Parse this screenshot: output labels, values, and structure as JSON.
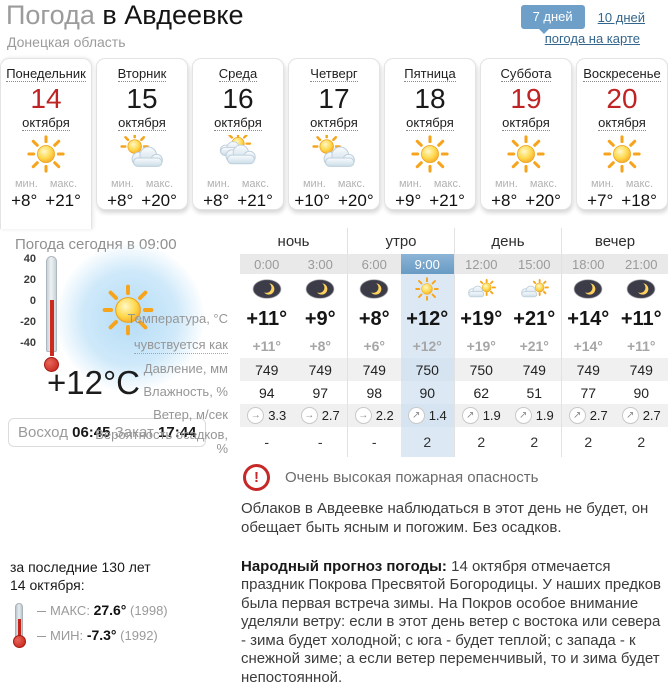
{
  "header": {
    "title_gray": "Погода",
    "title_black": "в Авдеевке",
    "subtitle": "Донецкая область",
    "btn_7days": "7 дней",
    "link_10days": "10 дней",
    "link_map": "погода на карте"
  },
  "colors": {
    "accent_blue": "#6d9fc9",
    "link_blue": "#34658c",
    "red_date": "#bf2323",
    "selected_column": "#dce9f5",
    "alert_red": "#c62828"
  },
  "labels": {
    "min": "мин.",
    "max": "макс."
  },
  "days": [
    {
      "name": "Понедельник",
      "date": "14",
      "month": "октября",
      "date_red": true,
      "icon": "sun",
      "min": "+8°",
      "max": "+21°",
      "selected": true
    },
    {
      "name": "Вторник",
      "date": "15",
      "month": "октября",
      "date_red": false,
      "icon": "sun-cloud",
      "min": "+8°",
      "max": "+20°",
      "selected": false
    },
    {
      "name": "Среда",
      "date": "16",
      "month": "октября",
      "date_red": false,
      "icon": "sun-clouds",
      "min": "+8°",
      "max": "+21°",
      "selected": false
    },
    {
      "name": "Четверг",
      "date": "17",
      "month": "октября",
      "date_red": false,
      "icon": "sun-cloud",
      "min": "+10°",
      "max": "+20°",
      "selected": false
    },
    {
      "name": "Пятница",
      "date": "18",
      "month": "октября",
      "date_red": false,
      "icon": "sun",
      "min": "+9°",
      "max": "+21°",
      "selected": false
    },
    {
      "name": "Суббота",
      "date": "19",
      "month": "октября",
      "date_red": true,
      "icon": "sun",
      "min": "+8°",
      "max": "+20°",
      "selected": false
    },
    {
      "name": "Воскресенье",
      "date": "20",
      "month": "октября",
      "date_red": true,
      "icon": "sun",
      "min": "+7°",
      "max": "+18°",
      "selected": false
    }
  ],
  "today": {
    "title": "Погода сегодня в 09:00",
    "big_temp": "+12°C",
    "thermo_scale": [
      "40",
      "20",
      "0",
      "-20",
      "-40"
    ],
    "sunrise_label": "Восход",
    "sunrise_time": "06:45",
    "sunset_label": "Закат",
    "sunset_time": "17:44"
  },
  "hourly": {
    "periods": [
      "ночь",
      "утро",
      "день",
      "вечер"
    ],
    "times": [
      "0:00",
      "3:00",
      "6:00",
      "9:00",
      "12:00",
      "15:00",
      "18:00",
      "21:00"
    ],
    "selected_time_index": 3,
    "icons": [
      "moon",
      "moon",
      "moon",
      "sun",
      "cloud-sun",
      "cloud-sun",
      "moon",
      "moon"
    ],
    "rows": [
      {
        "key": "temp",
        "label": "Температура, °C",
        "values": [
          "+11°",
          "+9°",
          "+8°",
          "+12°",
          "+19°",
          "+21°",
          "+14°",
          "+11°"
        ]
      },
      {
        "key": "feels",
        "label": "чувствуется как",
        "values": [
          "+11°",
          "+8°",
          "+6°",
          "+12°",
          "+19°",
          "+21°",
          "+14°",
          "+11°"
        ]
      },
      {
        "key": "press",
        "label": "Давление, мм",
        "values": [
          "749",
          "749",
          "749",
          "750",
          "750",
          "749",
          "749",
          "749"
        ]
      },
      {
        "key": "hum",
        "label": "Влажность, %",
        "values": [
          "94",
          "97",
          "98",
          "90",
          "62",
          "51",
          "77",
          "90"
        ]
      },
      {
        "key": "wind",
        "label": "Ветер, м/сек",
        "values": [
          "3.3",
          "2.7",
          "2.2",
          "1.4",
          "1.9",
          "1.9",
          "2.7",
          "2.7"
        ],
        "arrows": [
          "→",
          "→",
          "→",
          "↗",
          "↗",
          "↗",
          "↗",
          "↗"
        ]
      },
      {
        "key": "precip",
        "label": "Вероятность осадков, %",
        "values": [
          "-",
          "-",
          "-",
          "2",
          "2",
          "2",
          "2",
          "2"
        ]
      }
    ]
  },
  "alert": {
    "text": "Очень высокая пожарная опасность"
  },
  "summary": "Облаков в Авдеевке наблюдаться в этот день не будет, он обещает быть ясным и погожим. Без осадков.",
  "records": {
    "line1": "за последние 130 лет",
    "line2": "14 октября:",
    "max_label": "МАКС:",
    "max_value": "27.6°",
    "max_year": "(1998)",
    "min_label": "МИН:",
    "min_value": "-7.3°",
    "min_year": "(1992)"
  },
  "folk": {
    "bold": "Народный прогноз погоды:",
    "text": " 14 октября отмечается праздник Покрова Пресвятой Богородицы. У наших предков была первая встреча зимы. На Покров особое внимание уделяли ветру: если в этот день ветер с востока или севера - зима будет холодной; с юга - будет теплой; с запада - к снежной зиме; а если ветер переменчивый, то и зима будет непостоянной."
  }
}
